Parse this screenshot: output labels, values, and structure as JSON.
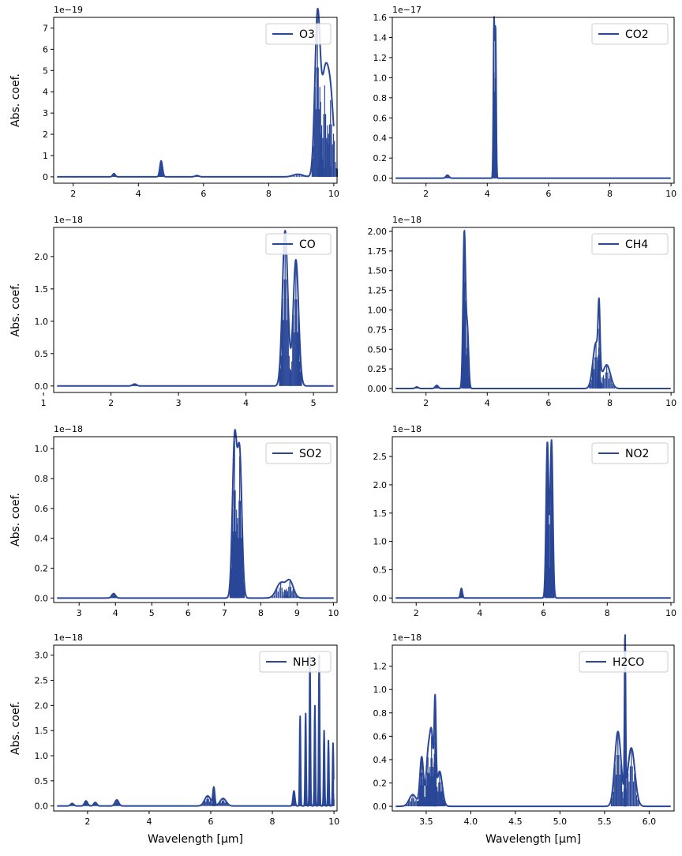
{
  "chart_data": [
    {
      "type": "line",
      "series": [
        {
          "name": "O3"
        }
      ],
      "offset_text": "1e−19",
      "ylabel": "Abs. coef.",
      "xlabel": "",
      "xlim": [
        1.4,
        10.1
      ],
      "ylim": [
        -0.3,
        7.5
      ],
      "xticks": [
        2,
        4,
        6,
        8,
        10
      ],
      "yticks": [
        0,
        1,
        2,
        3,
        4,
        5,
        6,
        7
      ],
      "ytick_labels": [
        "0",
        "1",
        "2",
        "3",
        "4",
        "5",
        "6",
        "7"
      ],
      "peaks": [
        {
          "x": 3.25,
          "y": 0.15,
          "w": 0.04
        },
        {
          "x": 4.7,
          "y": 0.75,
          "w": 0.04
        },
        {
          "x": 5.8,
          "y": 0.06,
          "w": 0.06
        },
        {
          "x": 8.9,
          "y": 0.12,
          "w": 0.15
        },
        {
          "x": 9.5,
          "y": 7.5,
          "w": 0.08
        },
        {
          "x": 9.72,
          "y": 4.3,
          "w": 0.1
        },
        {
          "x": 9.9,
          "y": 3.6,
          "w": 0.1
        }
      ],
      "color": "#2a4797"
    },
    {
      "type": "line",
      "series": [
        {
          "name": "CO2"
        }
      ],
      "offset_text": "1e−17",
      "ylabel": "",
      "xlabel": "",
      "xlim": [
        0.9,
        10.1
      ],
      "ylim": [
        -0.05,
        1.6
      ],
      "xticks": [
        2,
        4,
        6,
        8,
        10
      ],
      "yticks": [
        0,
        0.2,
        0.4,
        0.6,
        0.8,
        1.0,
        1.2,
        1.4,
        1.6
      ],
      "ytick_labels": [
        "0.0",
        "0.2",
        "0.4",
        "0.6",
        "0.8",
        "1.0",
        "1.2",
        "1.4",
        "1.6"
      ],
      "peaks": [
        {
          "x": 2.7,
          "y": 0.03,
          "w": 0.05
        },
        {
          "x": 4.22,
          "y": 1.53,
          "w": 0.02
        },
        {
          "x": 4.27,
          "y": 1.45,
          "w": 0.02
        }
      ],
      "color": "#2a4797"
    },
    {
      "type": "line",
      "series": [
        {
          "name": "CO"
        }
      ],
      "offset_text": "1e−18",
      "ylabel": "Abs. coef.",
      "xlabel": "",
      "xlim": [
        1.15,
        5.35
      ],
      "ylim": [
        -0.1,
        2.45
      ],
      "xticks": [
        1,
        2,
        3,
        4,
        5
      ],
      "yticks": [
        0,
        0.5,
        1.0,
        1.5,
        2.0
      ],
      "ytick_labels": [
        "0.0",
        "0.5",
        "1.0",
        "1.5",
        "2.0"
      ],
      "peaks": [
        {
          "x": 2.35,
          "y": 0.03,
          "w": 0.03
        },
        {
          "x": 4.58,
          "y": 2.4,
          "w": 0.04
        },
        {
          "x": 4.74,
          "y": 1.95,
          "w": 0.04
        }
      ],
      "color": "#2a4797"
    },
    {
      "type": "line",
      "series": [
        {
          "name": "CH4"
        }
      ],
      "offset_text": "1e−18",
      "ylabel": "",
      "xlabel": "",
      "xlim": [
        0.9,
        10.1
      ],
      "ylim": [
        -0.05,
        2.05
      ],
      "xticks": [
        2,
        4,
        6,
        8,
        10
      ],
      "yticks": [
        0,
        0.25,
        0.5,
        0.75,
        1.0,
        1.25,
        1.5,
        1.75,
        2.0
      ],
      "ytick_labels": [
        "0.00",
        "0.25",
        "0.50",
        "0.75",
        "1.00",
        "1.25",
        "1.50",
        "1.75",
        "2.00"
      ],
      "peaks": [
        {
          "x": 1.7,
          "y": 0.02,
          "w": 0.05
        },
        {
          "x": 2.35,
          "y": 0.04,
          "w": 0.05
        },
        {
          "x": 3.25,
          "y": 1.98,
          "w": 0.04
        },
        {
          "x": 3.35,
          "y": 0.75,
          "w": 0.04
        },
        {
          "x": 7.55,
          "y": 0.58,
          "w": 0.1
        },
        {
          "x": 7.65,
          "y": 0.76,
          "w": 0.03
        },
        {
          "x": 7.9,
          "y": 0.3,
          "w": 0.12
        }
      ],
      "color": "#2a4797"
    },
    {
      "type": "line",
      "series": [
        {
          "name": "SO2"
        }
      ],
      "offset_text": "1e−18",
      "ylabel": "Abs. coef.",
      "xlabel": "",
      "xlim": [
        2.3,
        10.1
      ],
      "ylim": [
        -0.03,
        1.08
      ],
      "xticks": [
        3,
        4,
        5,
        6,
        7,
        8,
        9,
        10
      ],
      "yticks": [
        0,
        0.2,
        0.4,
        0.6,
        0.8,
        1.0
      ],
      "ytick_labels": [
        "0.0",
        "0.2",
        "0.4",
        "0.6",
        "0.8",
        "1.0"
      ],
      "peaks": [
        {
          "x": 3.95,
          "y": 0.03,
          "w": 0.05
        },
        {
          "x": 7.28,
          "y": 1.05,
          "w": 0.06
        },
        {
          "x": 7.42,
          "y": 0.95,
          "w": 0.06
        },
        {
          "x": 8.55,
          "y": 0.1,
          "w": 0.12
        },
        {
          "x": 8.8,
          "y": 0.11,
          "w": 0.1
        }
      ],
      "color": "#2a4797"
    },
    {
      "type": "line",
      "series": [
        {
          "name": "NO2"
        }
      ],
      "offset_text": "1e−18",
      "ylabel": "",
      "xlabel": "",
      "xlim": [
        1.25,
        10.1
      ],
      "ylim": [
        -0.08,
        2.85
      ],
      "xticks": [
        2,
        4,
        6,
        8,
        10
      ],
      "yticks": [
        0,
        0.5,
        1.0,
        1.5,
        2.0,
        2.5
      ],
      "ytick_labels": [
        "0.0",
        "0.5",
        "1.0",
        "1.5",
        "2.0",
        "2.5"
      ],
      "peaks": [
        {
          "x": 3.42,
          "y": 0.17,
          "w": 0.03
        },
        {
          "x": 6.12,
          "y": 2.75,
          "w": 0.04
        },
        {
          "x": 6.25,
          "y": 2.78,
          "w": 0.04
        }
      ],
      "color": "#2a4797"
    },
    {
      "type": "line",
      "series": [
        {
          "name": "NH3"
        }
      ],
      "offset_text": "1e−18",
      "ylabel": "Abs. coef.",
      "xlabel": "Wavelength [µm]",
      "xlim": [
        0.9,
        10.1
      ],
      "ylim": [
        -0.1,
        3.2
      ],
      "xticks": [
        2,
        4,
        6,
        8,
        10
      ],
      "yticks": [
        0,
        0.5,
        1.0,
        1.5,
        2.0,
        2.5,
        3.0
      ],
      "ytick_labels": [
        "0.0",
        "0.5",
        "1.0",
        "1.5",
        "2.0",
        "2.5",
        "3.0"
      ],
      "peaks": [
        {
          "x": 1.5,
          "y": 0.05,
          "w": 0.05
        },
        {
          "x": 1.95,
          "y": 0.1,
          "w": 0.05
        },
        {
          "x": 2.25,
          "y": 0.07,
          "w": 0.05
        },
        {
          "x": 2.95,
          "y": 0.12,
          "w": 0.06
        },
        {
          "x": 5.9,
          "y": 0.2,
          "w": 0.1
        },
        {
          "x": 6.1,
          "y": 0.35,
          "w": 0.03
        },
        {
          "x": 6.4,
          "y": 0.15,
          "w": 0.1
        },
        {
          "x": 8.7,
          "y": 0.3,
          "w": 0.03
        },
        {
          "x": 8.9,
          "y": 1.8,
          "w": 0.015
        },
        {
          "x": 9.08,
          "y": 1.85,
          "w": 0.015
        },
        {
          "x": 9.22,
          "y": 3.0,
          "w": 0.015
        },
        {
          "x": 9.38,
          "y": 2.0,
          "w": 0.015
        },
        {
          "x": 9.52,
          "y": 3.0,
          "w": 0.015
        },
        {
          "x": 9.68,
          "y": 1.5,
          "w": 0.015
        },
        {
          "x": 9.82,
          "y": 1.3,
          "w": 0.015
        },
        {
          "x": 9.97,
          "y": 1.25,
          "w": 0.015
        }
      ],
      "color": "#2a4797"
    },
    {
      "type": "line",
      "series": [
        {
          "name": "H2CO"
        }
      ],
      "offset_text": "1e−18",
      "ylabel": "",
      "xlabel": "Wavelength [µm]",
      "xlim": [
        3.12,
        6.28
      ],
      "ylim": [
        -0.04,
        1.38
      ],
      "xticks": [
        3.5,
        4.0,
        4.5,
        5.0,
        5.5,
        6.0
      ],
      "xtick_labels": [
        "3.5",
        "4.0",
        "4.5",
        "5.0",
        "5.5",
        "6.0"
      ],
      "yticks": [
        0,
        0.2,
        0.4,
        0.6,
        0.8,
        1.0,
        1.2
      ],
      "ytick_labels": [
        "0.0",
        "0.2",
        "0.4",
        "0.6",
        "0.8",
        "1.0",
        "1.2"
      ],
      "peaks": [
        {
          "x": 3.35,
          "y": 0.1,
          "w": 0.04
        },
        {
          "x": 3.45,
          "y": 0.42,
          "w": 0.02
        },
        {
          "x": 3.52,
          "y": 0.42,
          "w": 0.02
        },
        {
          "x": 3.56,
          "y": 0.6,
          "w": 0.02
        },
        {
          "x": 3.6,
          "y": 0.8,
          "w": 0.01
        },
        {
          "x": 3.65,
          "y": 0.3,
          "w": 0.03
        },
        {
          "x": 5.65,
          "y": 0.64,
          "w": 0.035
        },
        {
          "x": 5.73,
          "y": 1.35,
          "w": 0.006
        },
        {
          "x": 5.8,
          "y": 0.5,
          "w": 0.04
        }
      ],
      "color": "#2a4797"
    }
  ]
}
